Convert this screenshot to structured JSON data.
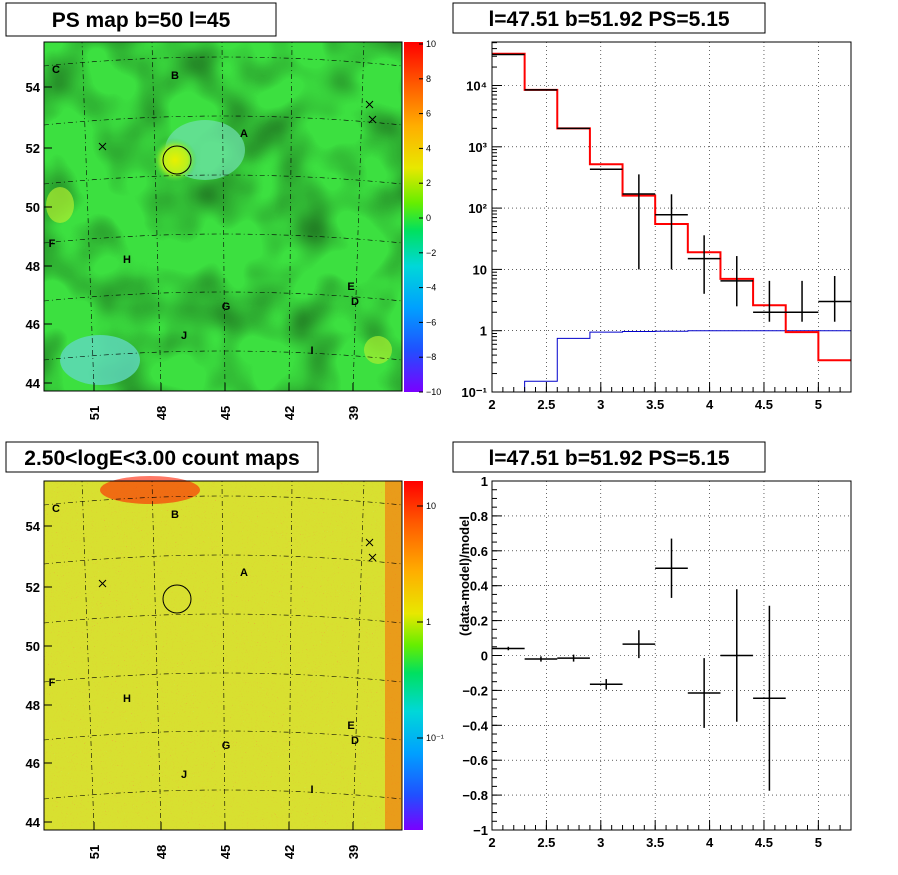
{
  "chart_data": [
    {
      "type": "heatmap",
      "title": "PS map b=50 l=45",
      "x_ticks": [
        "51",
        "48",
        "45",
        "42",
        "39"
      ],
      "y_ticks": [
        "54",
        "52",
        "50",
        "48",
        "46",
        "44"
      ],
      "colorbar_ticks": [
        "10",
        "8",
        "6",
        "4",
        "2",
        "0",
        "−2",
        "−4",
        "−6",
        "−8",
        "−10"
      ],
      "zlim": [
        -10,
        10
      ],
      "source_labels": [
        "C",
        "B",
        "A",
        "F",
        "H",
        "G",
        "J",
        "E",
        "D",
        "I"
      ]
    },
    {
      "type": "line",
      "title": "l=47.51 b=51.92 PS=5.15",
      "xlim": [
        2,
        5.3
      ],
      "ylim": [
        0.1,
        60000
      ],
      "yscale": "log",
      "grid": true,
      "x_ticks": [
        "2",
        "2.5",
        "3",
        "3.5",
        "4",
        "4.5",
        "5"
      ],
      "y_ticks": [
        "10⁻¹",
        "1",
        "10",
        "10²",
        "10³",
        "10⁴"
      ],
      "model_edges": [
        2,
        2.3,
        2.6,
        2.9,
        3.2,
        3.5,
        3.8,
        4.1,
        4.4,
        4.7,
        5.0,
        5.3
      ],
      "model_total": [
        33000,
        8500,
        2000,
        520,
        160,
        55,
        19,
        7,
        2.6,
        0.95,
        0.33
      ],
      "model_background": [
        0.1,
        0.15,
        0.75,
        0.95,
        0.97,
        0.98,
        1.0,
        1.0,
        1.0,
        1.0,
        1.0
      ],
      "points": [
        {
          "x": 2.15,
          "y": 32000,
          "xerr": 0.15,
          "yerr": [
            0,
            0
          ]
        },
        {
          "x": 2.45,
          "y": 8500,
          "xerr": 0.15,
          "yerr": [
            0,
            0
          ]
        },
        {
          "x": 2.75,
          "y": 2000,
          "xerr": 0.15,
          "yerr": [
            0,
            0
          ]
        },
        {
          "x": 3.05,
          "y": 430,
          "xerr": 0.15,
          "yerr": [
            0,
            0
          ]
        },
        {
          "x": 3.35,
          "y": 170,
          "xerr": 0.15,
          "yerr": [
            160,
            185
          ]
        },
        {
          "x": 3.65,
          "y": 78,
          "xerr": 0.15,
          "yerr": [
            68,
            90
          ]
        },
        {
          "x": 3.95,
          "y": 15,
          "xerr": 0.15,
          "yerr": [
            11,
            21
          ]
        },
        {
          "x": 4.25,
          "y": 6.5,
          "xerr": 0.15,
          "yerr": [
            4.0,
            10
          ]
        },
        {
          "x": 4.55,
          "y": 2.0,
          "xerr": 0.15,
          "yerr": [
            0.6,
            4.5
          ]
        },
        {
          "x": 4.85,
          "y": 2.0,
          "xerr": 0.15,
          "yerr": [
            0.6,
            4.5
          ]
        },
        {
          "x": 5.15,
          "y": 3.0,
          "xerr": 0.15,
          "yerr": [
            1.6,
            4.8
          ]
        }
      ]
    },
    {
      "type": "heatmap",
      "title": "2.50<logE<3.00 count maps",
      "x_ticks": [
        "51",
        "48",
        "45",
        "42",
        "39"
      ],
      "y_ticks": [
        "54",
        "52",
        "50",
        "48",
        "46",
        "44"
      ],
      "colorbar_ticks": [
        "10",
        "1",
        "10⁻¹"
      ],
      "zscale": "log",
      "source_labels": [
        "C",
        "B",
        "A",
        "F",
        "H",
        "G",
        "J",
        "E",
        "D",
        "I"
      ]
    },
    {
      "type": "scatter",
      "title": "l=47.51 b=51.92 PS=5.15",
      "ylabel": "(data-model)/model",
      "xlim": [
        2,
        5.3
      ],
      "ylim": [
        -1,
        1
      ],
      "grid": true,
      "x_ticks": [
        "2",
        "2.5",
        "3",
        "3.5",
        "4",
        "4.5",
        "5"
      ],
      "y_ticks": [
        "1",
        "0.8",
        "0.6",
        "0.4",
        "0.2",
        "0",
        "−0.2",
        "−0.4",
        "−0.6",
        "−0.8",
        "−1"
      ],
      "points": [
        {
          "x": 2.15,
          "y": 0.04,
          "xerr": 0.15,
          "yerr": 0.01
        },
        {
          "x": 2.45,
          "y": -0.02,
          "xerr": 0.15,
          "yerr": 0.015
        },
        {
          "x": 2.75,
          "y": -0.015,
          "xerr": 0.15,
          "yerr": 0.02
        },
        {
          "x": 3.05,
          "y": -0.165,
          "xerr": 0.15,
          "yerr": 0.03
        },
        {
          "x": 3.35,
          "y": 0.065,
          "xerr": 0.15,
          "yerr": 0.08
        },
        {
          "x": 3.65,
          "y": 0.5,
          "xerr": 0.15,
          "yerr": 0.17
        },
        {
          "x": 3.95,
          "y": -0.215,
          "xerr": 0.15,
          "yerr": 0.2
        },
        {
          "x": 4.25,
          "y": 0.0,
          "xerr": 0.15,
          "yerr": 0.38
        },
        {
          "x": 4.55,
          "y": -0.245,
          "xerr": 0.15,
          "yerr": 0.53
        }
      ]
    }
  ],
  "colors": {
    "model": "#ff0000",
    "background": "#0000cc",
    "data": "#000000"
  }
}
